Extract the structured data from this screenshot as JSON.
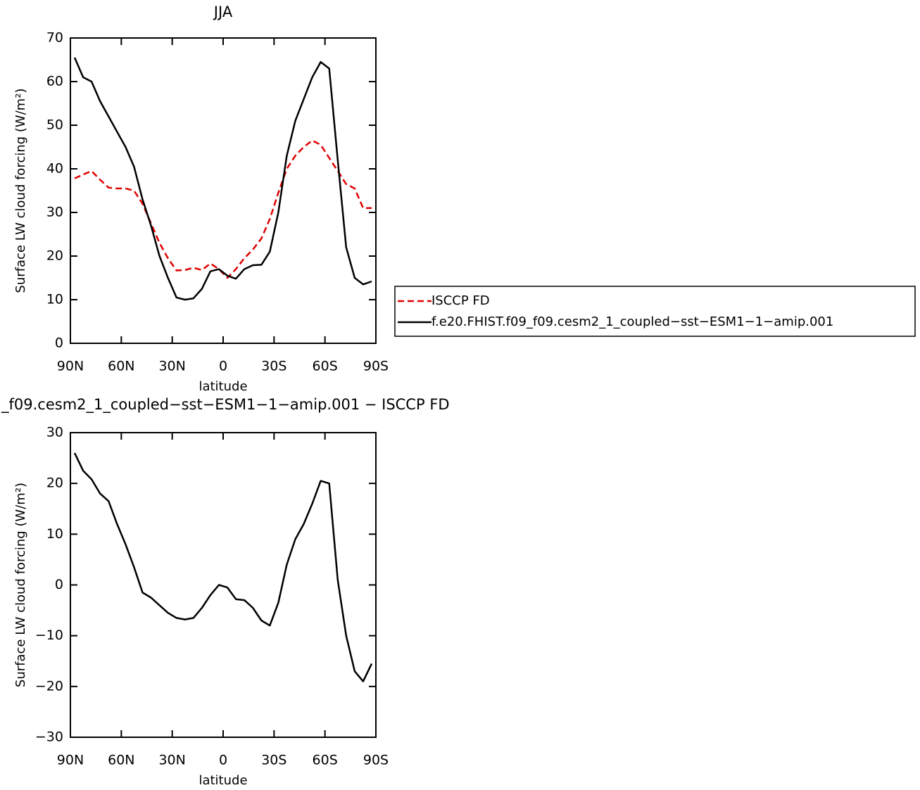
{
  "chart_data": [
    {
      "type": "line",
      "title": "JJA",
      "x_label": "latitude",
      "y_label": "Surface LW cloud forcing (W/m²)",
      "x": [
        87.5,
        82.5,
        77.5,
        72.5,
        67.5,
        62.5,
        57.5,
        52.5,
        47.5,
        42.5,
        37.5,
        32.5,
        27.5,
        22.5,
        17.5,
        12.5,
        7.5,
        2.5,
        -2.5,
        -7.5,
        -12.5,
        -17.5,
        -22.5,
        -27.5,
        -32.5,
        -37.5,
        -42.5,
        -47.5,
        -52.5,
        -57.5,
        -62.5,
        -67.5,
        -72.5,
        -77.5,
        -82.5,
        -87.5
      ],
      "series": [
        {
          "name": "ISCCP FD",
          "color": "#e00000",
          "dashed": true,
          "values": [
            37.8,
            38.7,
            39.5,
            37.5,
            35.7,
            35.5,
            35.5,
            35,
            32,
            27.5,
            23,
            19.5,
            16.7,
            16.8,
            17.3,
            16.8,
            18.3,
            17,
            15,
            17,
            19.5,
            21.5,
            24,
            28.5,
            34.5,
            40,
            43,
            45,
            46.5,
            45.5,
            42.5,
            39.5,
            36.5,
            35.5,
            31,
            31
          ]
        },
        {
          "name": "f.e20.FHIST.f09_f09.cesm2_1_coupled−sst−ESM1−1−amip.001",
          "color": "#000000",
          "dashed": false,
          "values": [
            65.5,
            61,
            60,
            55.5,
            52,
            48.5,
            45,
            40.5,
            33,
            27,
            20,
            15,
            10.5,
            10,
            10.3,
            12.5,
            16.5,
            17,
            15.5,
            14.8,
            17,
            17.9,
            18,
            21,
            30,
            43,
            51,
            56,
            61,
            64.5,
            63,
            42,
            22,
            15,
            13.5,
            14.2
          ]
        }
      ],
      "xlim": [
        90,
        -90
      ],
      "xticks": [
        {
          "value": 90,
          "label": "90N"
        },
        {
          "value": 60,
          "label": "60N"
        },
        {
          "value": 30,
          "label": "30N"
        },
        0,
        {
          "value": -30,
          "label": "30S"
        },
        {
          "value": -60,
          "label": "60S"
        },
        {
          "value": -90,
          "label": "90S"
        }
      ],
      "ylim": [
        0,
        70
      ],
      "yticks": [
        0,
        10,
        20,
        30,
        40,
        50,
        60,
        70
      ],
      "legend": "right"
    },
    {
      "type": "line",
      "title": "_f09.cesm2_1_coupled−sst−ESM1−1−amip.001 − ISCCP FD",
      "x_label": "latitude",
      "y_label": "Surface LW cloud forcing (W/m²)",
      "x": [
        87.5,
        82.5,
        77.5,
        72.5,
        67.5,
        62.5,
        57.5,
        52.5,
        47.5,
        42.5,
        37.5,
        32.5,
        27.5,
        22.5,
        17.5,
        12.5,
        7.5,
        2.5,
        -2.5,
        -7.5,
        -12.5,
        -17.5,
        -22.5,
        -27.5,
        -32.5,
        -37.5,
        -42.5,
        -47.5,
        -52.5,
        -57.5,
        -62.5,
        -67.5,
        -72.5,
        -77.5,
        -82.5,
        -87.5
      ],
      "values": [
        26,
        22.5,
        20.8,
        18,
        16.5,
        12,
        8,
        3.5,
        -1.5,
        -2.5,
        -4,
        -5.5,
        -6.5,
        -6.8,
        -6.5,
        -4.5,
        -2,
        0,
        -0.5,
        -2.8,
        -3,
        -4.5,
        -7,
        -8,
        -3.5,
        4,
        9,
        12,
        16,
        20.5,
        20,
        1,
        -10,
        -17,
        -19,
        -15.5
      ],
      "color": "#000000",
      "xlim": [
        90,
        -90
      ],
      "xticks": [
        {
          "value": 90,
          "label": "90N"
        },
        {
          "value": 60,
          "label": "60N"
        },
        {
          "value": 30,
          "label": "30N"
        },
        0,
        {
          "value": -30,
          "label": "30S"
        },
        {
          "value": -60,
          "label": "60S"
        },
        {
          "value": -90,
          "label": "90S"
        }
      ],
      "ylim": [
        -30,
        30
      ],
      "yticks": [
        {
          "value": -30,
          "label": "−30"
        },
        {
          "value": -20,
          "label": "−20"
        },
        {
          "value": -10,
          "label": "−10"
        },
        0,
        10,
        20,
        30
      ]
    }
  ]
}
